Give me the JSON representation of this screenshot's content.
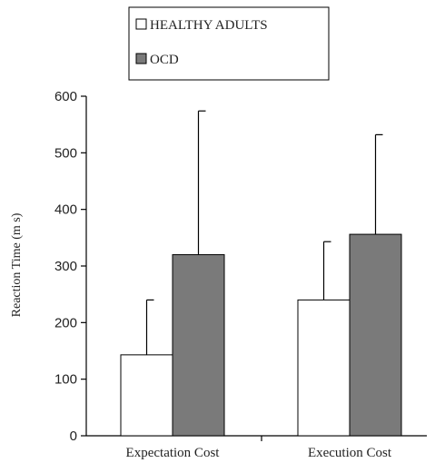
{
  "chart_data": {
    "type": "bar",
    "categories": [
      "Expectation Cost",
      "Execution Cost"
    ],
    "series": [
      {
        "name": "HEALTHY ADULTS",
        "values": [
          143,
          240
        ],
        "error_upper": [
          240,
          343
        ],
        "color": "#ffffff"
      },
      {
        "name": "OCD",
        "values": [
          320,
          356
        ],
        "error_upper": [
          574,
          532
        ],
        "color": "#7a7a7a"
      }
    ],
    "title": "",
    "xlabel": "",
    "ylabel": "Reaction Time (m s)",
    "ylim": [
      0,
      600
    ],
    "yticks": [
      0,
      100,
      200,
      300,
      400,
      500,
      600
    ],
    "grid": false,
    "legend": "top-center"
  }
}
